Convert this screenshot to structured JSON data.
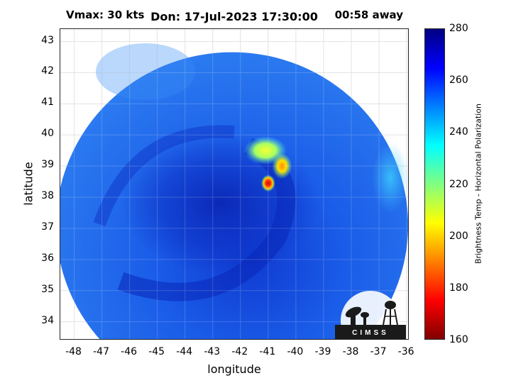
{
  "title": "Don: 17-Jul-2023 17:30:00",
  "annotations": {
    "vmax": "Vmax: 30 kts",
    "time_away": "00:58 away"
  },
  "xaxis": {
    "label": "longitude",
    "range": [
      -48.5,
      -35.9
    ],
    "ticks": [
      -48,
      -47,
      -46,
      -45,
      -44,
      -43,
      -42,
      -41,
      -40,
      -39,
      -38,
      -37,
      -36
    ]
  },
  "yaxis": {
    "label": "latitude",
    "range": [
      33.4,
      43.4
    ],
    "ticks": [
      34,
      35,
      36,
      37,
      38,
      39,
      40,
      41,
      42,
      43
    ]
  },
  "colorbar": {
    "label": "Brightness Temp - Horizontal Polarization",
    "range": [
      160,
      280
    ],
    "ticks": [
      280,
      260,
      240,
      220,
      200,
      180,
      160
    ],
    "colors": [
      "#800000",
      "#ff0000",
      "#ff8000",
      "#ffff00",
      "#80ff80",
      "#00ffff",
      "#0080ff",
      "#0000ff",
      "#000080"
    ]
  },
  "logo": {
    "text": "CIMSS"
  },
  "map": {
    "swath_center": [
      -42.3,
      37.1
    ],
    "storm_center": [
      -41.2,
      38.5
    ],
    "warm_spots": [
      {
        "lon": -41.0,
        "lat": 38.45,
        "value": 180
      },
      {
        "lon": -40.5,
        "lat": 39.0,
        "value": 200
      },
      {
        "lon": -41.1,
        "lat": 39.5,
        "value": 222
      }
    ]
  }
}
